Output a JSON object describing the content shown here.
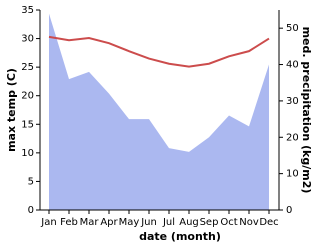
{
  "chart_data": {
    "type": "line-area",
    "x_label": "date (month)",
    "y_label": "max temp (C)",
    "y2_label": "med. precipitation (kg/m2)",
    "categories": [
      "Jan",
      "Feb",
      "Mar",
      "Apr",
      "May",
      "Jun",
      "Jul",
      "Aug",
      "Sep",
      "Oct",
      "Nov",
      "Dec"
    ],
    "series": [
      {
        "name": "max temp",
        "color": "#cc4c4c",
        "values": [
          30.3,
          29.7,
          30.1,
          29.2,
          27.8,
          26.5,
          25.6,
          25.1,
          25.6,
          26.9,
          27.8,
          30.0
        ]
      },
      {
        "name": "med. precipitation",
        "color": "#abb8f0",
        "axis": "y2",
        "values": [
          54,
          36,
          38,
          32,
          25,
          25,
          17,
          16,
          20,
          26,
          23,
          40
        ]
      }
    ],
    "ylim": [
      0,
      35
    ],
    "yticks": [
      0,
      5,
      10,
      15,
      20,
      25,
      30,
      35
    ],
    "y2lim": [
      0,
      55
    ],
    "y2ticks": [
      0,
      10,
      20,
      30,
      40,
      50
    ]
  }
}
